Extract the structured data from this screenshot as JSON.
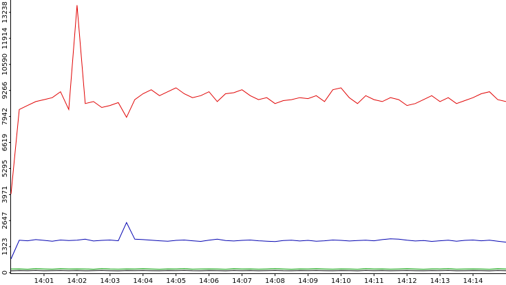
{
  "chart_data": {
    "type": "line",
    "x": [
      "14:00:00",
      "14:00:15",
      "14:00:30",
      "14:00:45",
      "14:01:00",
      "14:01:15",
      "14:01:30",
      "14:01:45",
      "14:02:00",
      "14:02:15",
      "14:02:30",
      "14:02:45",
      "14:03:00",
      "14:03:15",
      "14:03:30",
      "14:03:45",
      "14:04:00",
      "14:04:15",
      "14:04:30",
      "14:04:45",
      "14:05:00",
      "14:05:15",
      "14:05:30",
      "14:05:45",
      "14:06:00",
      "14:06:15",
      "14:06:30",
      "14:06:45",
      "14:07:00",
      "14:07:15",
      "14:07:30",
      "14:07:45",
      "14:08:00",
      "14:08:15",
      "14:08:30",
      "14:08:45",
      "14:09:00",
      "14:09:15",
      "14:09:30",
      "14:09:45",
      "14:10:00",
      "14:10:15",
      "14:10:30",
      "14:10:45",
      "14:11:00",
      "14:11:15",
      "14:11:30",
      "14:11:45",
      "14:12:00",
      "14:12:15",
      "14:12:30",
      "14:12:45",
      "14:13:00",
      "14:13:15",
      "14:13:30",
      "14:13:45",
      "14:14:00",
      "14:14:15",
      "14:14:30",
      "14:14:45",
      "14:15:00"
    ],
    "series": [
      {
        "color": "#e00000",
        "values": [
          4000,
          8300,
          8500,
          8700,
          8800,
          8900,
          9200,
          8300,
          13600,
          8600,
          8700,
          8400,
          8500,
          8650,
          7900,
          8800,
          9100,
          9300,
          9000,
          9200,
          9400,
          9100,
          8900,
          9000,
          9200,
          8700,
          9100,
          9150,
          9300,
          9000,
          8800,
          8900,
          8600,
          8750,
          8800,
          8900,
          8850,
          9000,
          8700,
          9300,
          9400,
          8900,
          8600,
          9000,
          8800,
          8700,
          8900,
          8800,
          8500,
          8600,
          8800,
          9000,
          8700,
          8900,
          8600,
          8750,
          8900,
          9100,
          9200,
          8800,
          8700
        ]
      },
      {
        "color": "#0000b0",
        "values": [
          700,
          1650,
          1620,
          1680,
          1640,
          1600,
          1660,
          1630,
          1650,
          1700,
          1610,
          1640,
          1660,
          1620,
          2550,
          1700,
          1680,
          1650,
          1620,
          1600,
          1640,
          1660,
          1620,
          1590,
          1650,
          1700,
          1630,
          1610,
          1640,
          1660,
          1620,
          1600,
          1580,
          1630,
          1650,
          1610,
          1640,
          1600,
          1620,
          1660,
          1640,
          1610,
          1630,
          1650,
          1620,
          1680,
          1720,
          1700,
          1650,
          1610,
          1630,
          1590,
          1620,
          1650,
          1600,
          1640,
          1660,
          1620,
          1650,
          1600,
          1550
        ]
      },
      {
        "color": "#00a000",
        "values": [
          180,
          190,
          170,
          200,
          185,
          175,
          195,
          180,
          190,
          185,
          170,
          200,
          180,
          175,
          190,
          185,
          195,
          180,
          170,
          190,
          185,
          200,
          175,
          180,
          190,
          185,
          170,
          195,
          180,
          190,
          175,
          185,
          200,
          180,
          170,
          190,
          185,
          195,
          180,
          175,
          190,
          185,
          170,
          200,
          180,
          190,
          175,
          185,
          195,
          180,
          170,
          190,
          185,
          200,
          175,
          180,
          190,
          185,
          170,
          195,
          180
        ]
      },
      {
        "color": "#000000",
        "values": [
          90,
          110,
          100,
          120,
          95,
          105,
          115,
          100,
          110,
          95,
          105,
          120,
          100,
          90,
          110,
          105,
          115,
          100,
          95,
          110,
          105,
          120,
          100,
          95,
          110,
          105,
          90,
          115,
          100,
          110,
          95,
          105,
          120,
          100,
          95,
          110,
          105,
          115,
          100,
          95,
          110,
          105,
          90,
          120,
          100,
          110,
          95,
          105,
          115,
          100,
          95,
          110,
          105,
          120,
          95,
          100,
          110,
          105,
          90,
          115,
          100
        ]
      }
    ],
    "xlim": [
      "14:00:00",
      "14:15:00"
    ],
    "xticks": [
      "14:01",
      "14:02",
      "14:03",
      "14:04",
      "14:05",
      "14:06",
      "14:07",
      "14:08",
      "14:09",
      "14:10",
      "14:11",
      "14:12",
      "14:13",
      "14:14"
    ],
    "ylim": [
      0,
      13238
    ],
    "yticks": [
      0,
      1323,
      2647,
      3971,
      5295,
      6619,
      7942,
      9266,
      10590,
      11914,
      13238
    ]
  }
}
